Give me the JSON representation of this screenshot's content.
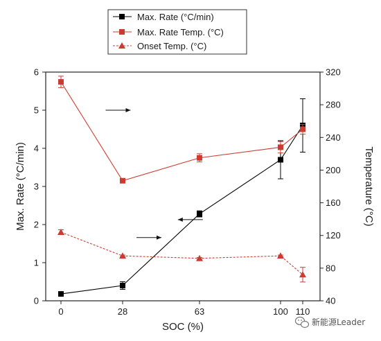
{
  "chart_data": {
    "type": "line",
    "title": "",
    "xlabel": "SOC (%)",
    "ylabel_left": "Max. Rate (°C/min)",
    "ylabel_right": "Temperature (°C)",
    "x_ticks": [
      "0",
      "28",
      "63",
      "100",
      "110"
    ],
    "x": [
      0,
      28,
      63,
      100,
      110
    ],
    "ylim_left": [
      0,
      6
    ],
    "y_ticks_left": [
      "0",
      "1",
      "2",
      "3",
      "4",
      "5",
      "6"
    ],
    "ylim_right": [
      40,
      320
    ],
    "y_ticks_right": [
      "40",
      "80",
      "120",
      "160",
      "200",
      "240",
      "280",
      "320"
    ],
    "legend_position": "top-center",
    "grid": false,
    "series": [
      {
        "name": "Max. Rate (°C/min)",
        "axis": "left",
        "color": "#000000",
        "marker": "square",
        "line_style": "solid",
        "values": [
          0.18,
          0.4,
          2.28,
          3.7,
          4.6
        ],
        "errors": [
          0.02,
          0.1,
          0.08,
          0.5,
          0.7
        ]
      },
      {
        "name": "Max. Rate Temp. (°C)",
        "axis": "right",
        "color": "#cc3b30",
        "marker": "square",
        "line_style": "solid",
        "values": [
          308,
          187,
          215,
          228,
          250
        ],
        "errors": [
          7,
          2,
          5,
          7,
          6
        ]
      },
      {
        "name": "Onset Temp. (°C)",
        "axis": "right",
        "color": "#cc3b30",
        "marker": "triangle",
        "line_style": "dashed",
        "values": [
          124,
          95,
          92,
          95,
          72
        ],
        "errors": [
          3,
          1,
          1,
          1,
          9
        ]
      }
    ],
    "annotations": [
      {
        "type": "arrow",
        "direction": "right",
        "x": 14,
        "y_left": 5.0
      },
      {
        "type": "arrow",
        "direction": "right",
        "x": 28,
        "y_left": 1.66
      },
      {
        "type": "arrow",
        "direction": "left",
        "x": 55,
        "y_left": 2.13
      }
    ]
  },
  "watermark": {
    "text": "新能源Leader",
    "icon": "wechat-icon"
  }
}
